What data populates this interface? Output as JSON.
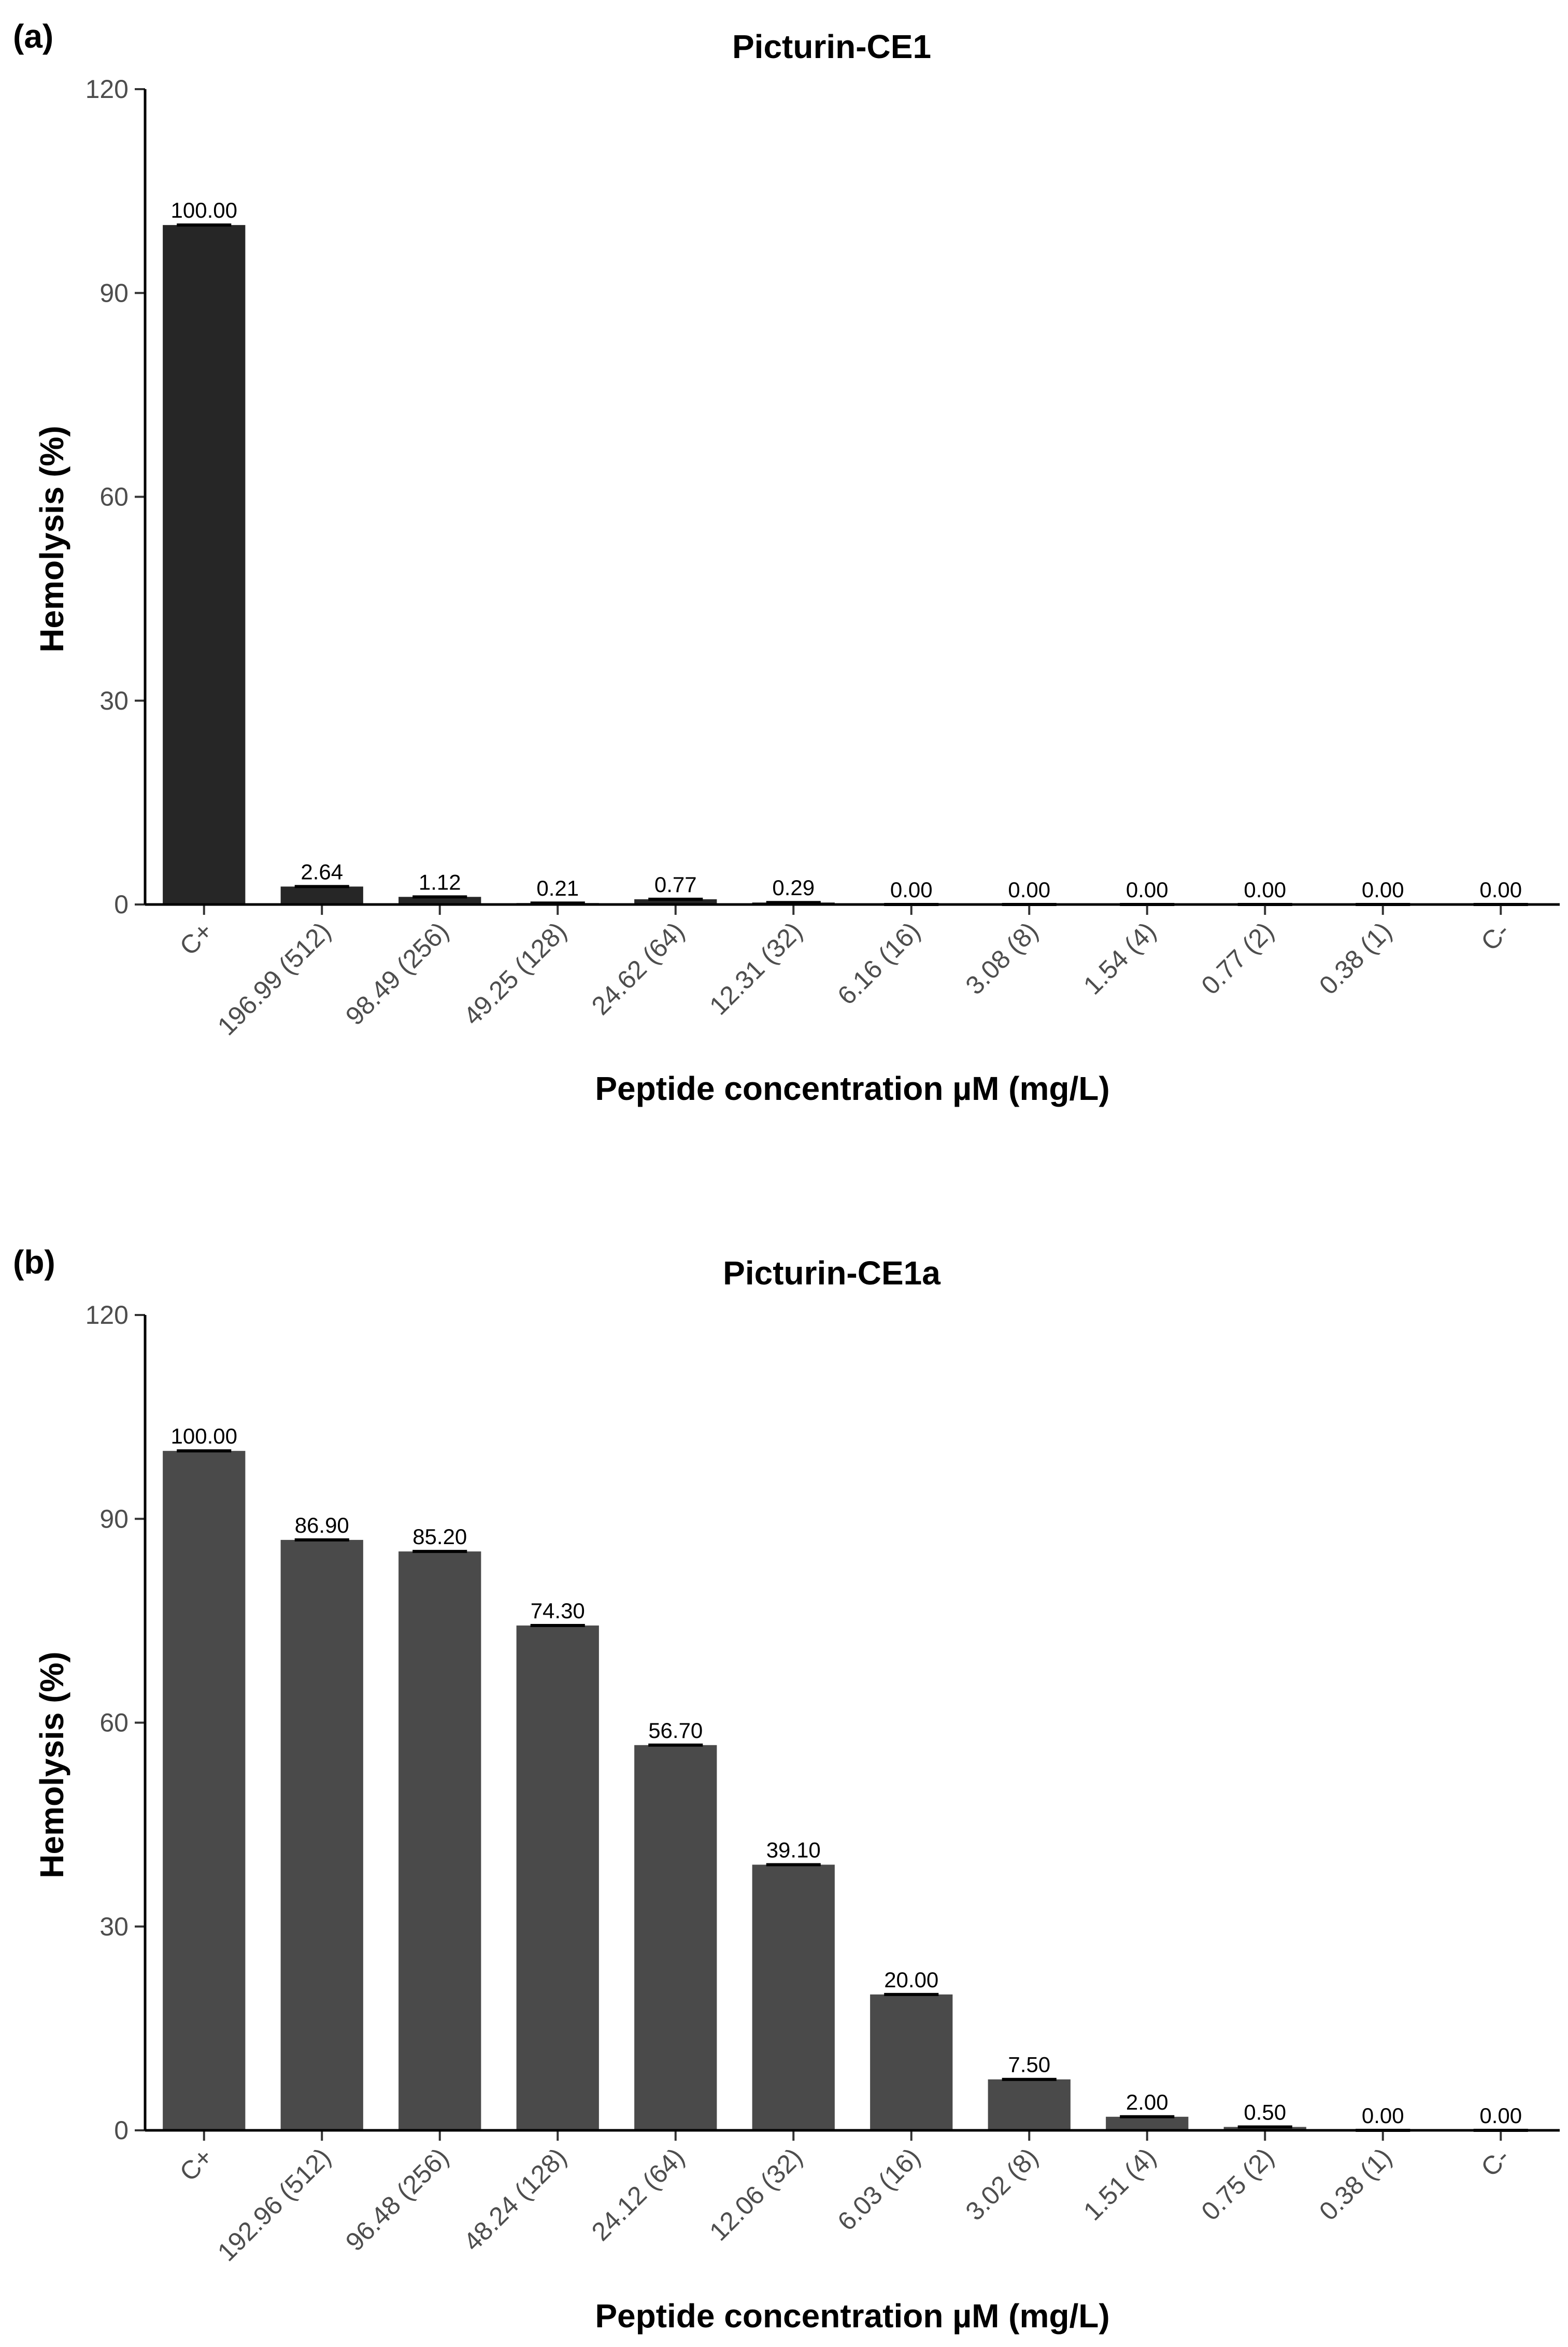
{
  "chart_data": [
    {
      "panel": "(a)",
      "type": "bar",
      "title": "Picturin-CE1",
      "xlabel": "Peptide concentration µM (mg/L)",
      "ylabel": "Hemolysis (%)",
      "ylim": [
        0,
        120
      ],
      "yticks": [
        "0",
        "30",
        "60",
        "90",
        "120"
      ],
      "bar_color": "#262626",
      "categories": [
        "C+",
        "196.99 (512)",
        "98.49 (256)",
        "49.25 (128)",
        "24.62 (64)",
        "12.31 (32)",
        "6.16 (16)",
        "3.08 (8)",
        "1.54 (4)",
        "0.77 (2)",
        "0.38 (1)",
        "C-"
      ],
      "values": [
        100.0,
        2.64,
        1.12,
        0.21,
        0.77,
        0.29,
        0.0,
        0.0,
        0.0,
        0.0,
        0.0,
        0.0
      ],
      "labels": [
        "100.00",
        "2.64",
        "1.12",
        "0.21",
        "0.77",
        "0.29",
        "0.00",
        "0.00",
        "0.00",
        "0.00",
        "0.00",
        "0.00"
      ]
    },
    {
      "panel": "(b)",
      "type": "bar",
      "title": "Picturin-CE1a",
      "xlabel": "Peptide concentration µM (mg/L)",
      "ylabel": "Hemolysis (%)",
      "ylim": [
        0,
        120
      ],
      "yticks": [
        "0",
        "30",
        "60",
        "90",
        "120"
      ],
      "bar_color": "#4a4a4a",
      "categories": [
        "C+",
        "192.96 (512)",
        "96.48 (256)",
        "48.24 (128)",
        "24.12 (64)",
        "12.06 (32)",
        "6.03 (16)",
        "3.02 (8)",
        "1.51 (4)",
        "0.75 (2)",
        "0.38 (1)",
        "C-"
      ],
      "values": [
        100.0,
        86.9,
        85.2,
        74.3,
        56.7,
        39.1,
        20.0,
        7.5,
        2.0,
        0.5,
        0.0,
        0.0
      ],
      "labels": [
        "100.00",
        "86.90",
        "85.20",
        "74.30",
        "56.70",
        "39.10",
        "20.00",
        "7.50",
        "2.00",
        "0.50",
        "0.00",
        "0.00"
      ]
    }
  ]
}
